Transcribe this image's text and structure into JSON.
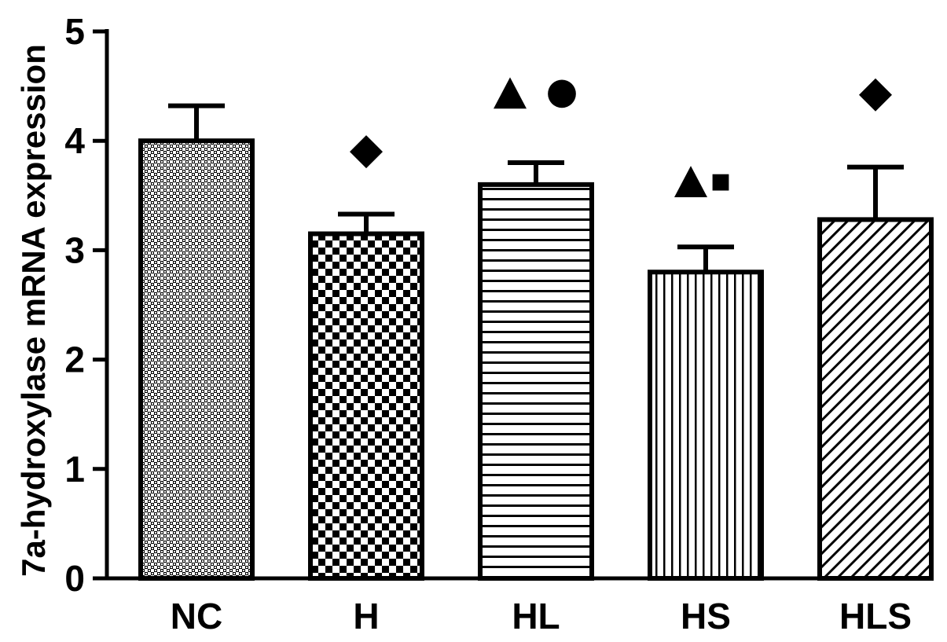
{
  "chart_data": {
    "type": "bar",
    "ylabel": "7a-hydroxylase mRNA expression",
    "xlabel": "",
    "ylim": [
      0,
      5
    ],
    "yticks": [
      "0",
      "1",
      "2",
      "3",
      "4",
      "5"
    ],
    "categories": [
      "NC",
      "H",
      "HL",
      "HS",
      "HLS"
    ],
    "values": [
      4.0,
      3.15,
      3.6,
      2.8,
      3.28
    ],
    "errors": [
      0.32,
      0.18,
      0.2,
      0.23,
      0.48
    ],
    "patterns": [
      "fine-dots",
      "checker",
      "horizontal-lines",
      "vertical-lines",
      "diagonal-lines"
    ],
    "annotations": [
      {
        "category": "H",
        "symbols": [
          "diamond"
        ]
      },
      {
        "category": "HL",
        "symbols": [
          "triangle",
          "circle"
        ]
      },
      {
        "category": "HS",
        "symbols": [
          "triangle",
          "square"
        ]
      },
      {
        "category": "HLS",
        "symbols": [
          "diamond"
        ]
      }
    ],
    "grid": false,
    "legend": "none"
  }
}
